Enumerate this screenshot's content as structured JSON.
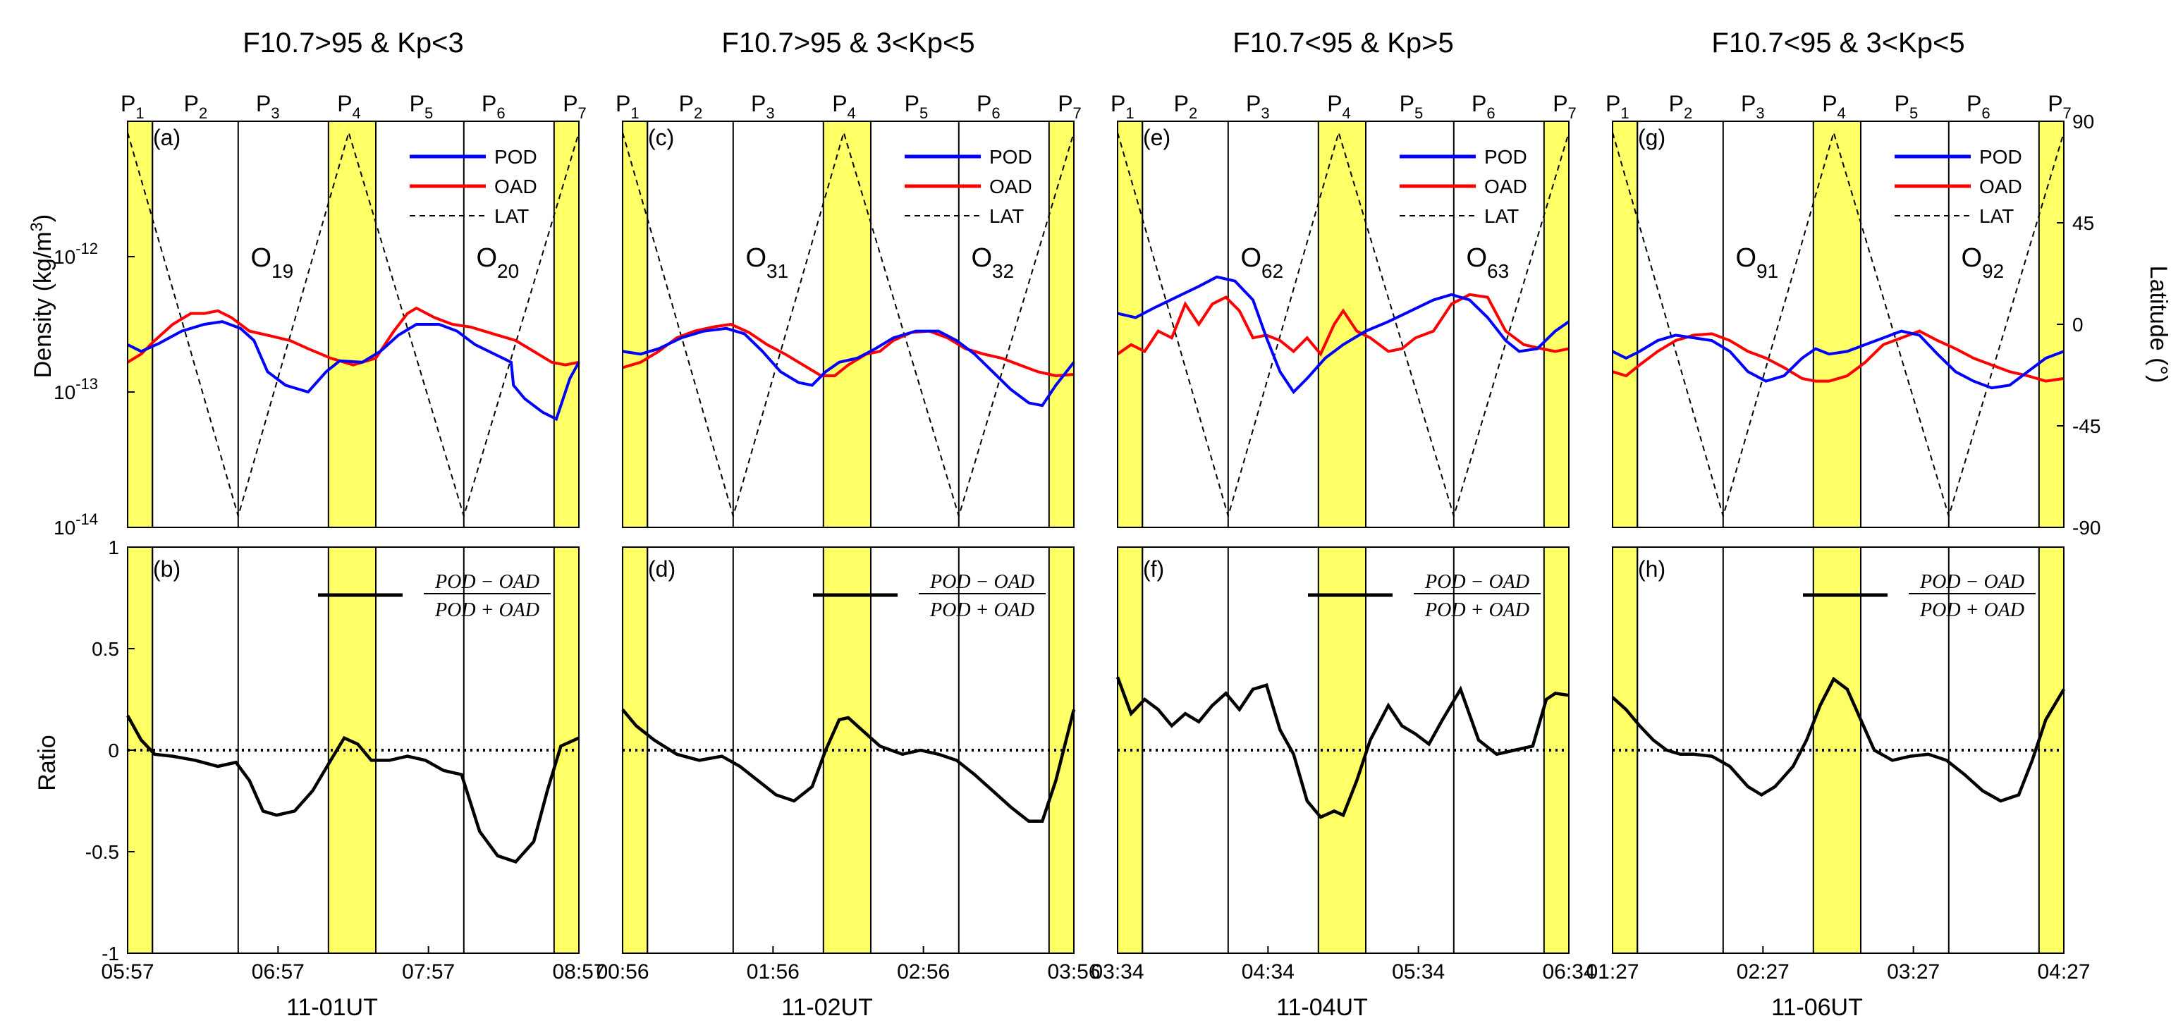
{
  "figure": {
    "ylabel_top": "Density (kg/m",
    "ylabel_top_sup": "3",
    "ylabel_top_end": ")",
    "ylabel_right": "Latitude (°)",
    "ylabel_bottom": "Ratio",
    "ratio_fraction": {
      "numerator": "POD − OAD",
      "denominator": "POD + OAD"
    },
    "colors": {
      "pod": "#0000ff",
      "oad": "#ff0000",
      "lat": "#000000",
      "highlight": "#ffff66",
      "ratio": "#000000"
    }
  },
  "chart_data": [
    {
      "type": "line",
      "panel": "top-left",
      "title": "F10.7>95 & Kp<3",
      "label_top": "(a)",
      "label_bottom": "(b)",
      "xtick_labels": [
        "05:57",
        "06:57",
        "07:57",
        "08:57"
      ],
      "date_label": "11-01UT",
      "orbit_labels": [
        {
          "name": "O",
          "sub": "19",
          "t": 0.32
        },
        {
          "name": "O",
          "sub": "20",
          "t": 0.82
        }
      ],
      "p_markers": [
        {
          "name": "P",
          "sub": "1",
          "t": 0.0
        },
        {
          "name": "P",
          "sub": "2",
          "t": 0.14
        },
        {
          "name": "P",
          "sub": "3",
          "t": 0.3
        },
        {
          "name": "P",
          "sub": "4",
          "t": 0.48
        },
        {
          "name": "P",
          "sub": "5",
          "t": 0.64
        },
        {
          "name": "P",
          "sub": "6",
          "t": 0.8
        },
        {
          "name": "P",
          "sub": "7",
          "t": 0.98
        }
      ],
      "vlines": [
        0.055,
        0.245,
        0.745
      ],
      "bands": [
        [
          0,
          0.055
        ],
        [
          0.445,
          0.55
        ],
        [
          0.945,
          1.0
        ]
      ],
      "legend": [
        "POD",
        "OAD",
        "LAT"
      ],
      "xlim": [
        0,
        1
      ],
      "ylim_density_log10": [
        -14,
        -11
      ],
      "ylim_latitude": [
        -90,
        90
      ],
      "ylim_ratio": [
        -1,
        1
      ],
      "yticks_density": [
        "10",
        "10",
        "10"
      ],
      "yticks_density_exp": [
        "-12",
        "-13",
        "-14"
      ],
      "yticks_ratio": [
        "1",
        "0.5",
        "0",
        "-0.5",
        "-1"
      ],
      "lat_x": [
        0,
        0.245,
        0.49,
        0.745,
        1.0
      ],
      "lat_y": [
        85,
        -85,
        85,
        -85,
        85
      ],
      "pod_x": [
        0,
        0.03,
        0.07,
        0.12,
        0.17,
        0.21,
        0.25,
        0.28,
        0.31,
        0.35,
        0.4,
        0.44,
        0.47,
        0.52,
        0.56,
        0.6,
        0.64,
        0.69,
        0.73,
        0.77,
        0.85,
        0.855,
        0.88,
        0.92,
        0.95,
        0.98,
        1.0
      ],
      "pod_log": [
        -12.65,
        -12.7,
        -12.64,
        -12.55,
        -12.5,
        -12.48,
        -12.53,
        -12.62,
        -12.85,
        -12.95,
        -13.0,
        -12.85,
        -12.77,
        -12.78,
        -12.7,
        -12.58,
        -12.5,
        -12.5,
        -12.55,
        -12.65,
        -12.78,
        -12.95,
        -13.05,
        -13.15,
        -13.2,
        -12.9,
        -12.78
      ],
      "oad_x": [
        0,
        0.03,
        0.06,
        0.1,
        0.14,
        0.17,
        0.2,
        0.23,
        0.27,
        0.31,
        0.36,
        0.4,
        0.45,
        0.5,
        0.55,
        0.59,
        0.62,
        0.64,
        0.68,
        0.72,
        0.76,
        0.82,
        0.86,
        0.9,
        0.94,
        0.97,
        1.0
      ],
      "oad_log": [
        -12.78,
        -12.72,
        -12.62,
        -12.5,
        -12.42,
        -12.42,
        -12.4,
        -12.45,
        -12.55,
        -12.58,
        -12.62,
        -12.68,
        -12.75,
        -12.8,
        -12.75,
        -12.55,
        -12.42,
        -12.38,
        -12.45,
        -12.5,
        -12.52,
        -12.58,
        -12.62,
        -12.7,
        -12.78,
        -12.8,
        -12.78
      ],
      "ratio_x": [
        0,
        0.03,
        0.06,
        0.1,
        0.15,
        0.2,
        0.24,
        0.27,
        0.3,
        0.33,
        0.37,
        0.41,
        0.45,
        0.48,
        0.51,
        0.54,
        0.58,
        0.62,
        0.66,
        0.7,
        0.74,
        0.78,
        0.82,
        0.86,
        0.9,
        0.93,
        0.96,
        1.0
      ],
      "ratio_y": [
        0.17,
        0.05,
        -0.02,
        -0.03,
        -0.05,
        -0.08,
        -0.06,
        -0.15,
        -0.3,
        -0.32,
        -0.3,
        -0.2,
        -0.05,
        0.06,
        0.03,
        -0.05,
        -0.05,
        -0.03,
        -0.05,
        -0.1,
        -0.12,
        -0.4,
        -0.52,
        -0.55,
        -0.45,
        -0.2,
        0.02,
        0.06
      ]
    },
    {
      "type": "line",
      "panel": "top-second",
      "title": "F10.7>95 & 3<Kp<5",
      "label_top": "(c)",
      "label_bottom": "(d)",
      "xtick_labels": [
        "00:56",
        "01:56",
        "02:56",
        "03:56"
      ],
      "date_label": "11-02UT",
      "orbit_labels": [
        {
          "name": "O",
          "sub": "31",
          "t": 0.32
        },
        {
          "name": "O",
          "sub": "32",
          "t": 0.82
        }
      ],
      "p_markers": [
        {
          "name": "P",
          "sub": "1",
          "t": 0.0
        },
        {
          "name": "P",
          "sub": "2",
          "t": 0.14
        },
        {
          "name": "P",
          "sub": "3",
          "t": 0.3
        },
        {
          "name": "P",
          "sub": "4",
          "t": 0.48
        },
        {
          "name": "P",
          "sub": "5",
          "t": 0.64
        },
        {
          "name": "P",
          "sub": "6",
          "t": 0.8
        },
        {
          "name": "P",
          "sub": "7",
          "t": 0.98
        }
      ],
      "vlines": [
        0.055,
        0.245,
        0.745
      ],
      "bands": [
        [
          0,
          0.055
        ],
        [
          0.445,
          0.55
        ],
        [
          0.945,
          1.0
        ]
      ],
      "legend": [
        "POD",
        "OAD",
        "LAT"
      ],
      "xlim": [
        0,
        1
      ],
      "ylim_density_log10": [
        -14,
        -11
      ],
      "ylim_latitude": [
        -90,
        90
      ],
      "ylim_ratio": [
        -1,
        1
      ],
      "lat_x": [
        0,
        0.245,
        0.49,
        0.745,
        1.0
      ],
      "lat_y": [
        85,
        -85,
        85,
        -85,
        85
      ],
      "pod_x": [
        0,
        0.04,
        0.08,
        0.13,
        0.18,
        0.23,
        0.27,
        0.31,
        0.35,
        0.39,
        0.42,
        0.45,
        0.48,
        0.52,
        0.56,
        0.6,
        0.65,
        0.7,
        0.74,
        0.78,
        0.82,
        0.86,
        0.9,
        0.93,
        0.96,
        1.0
      ],
      "pod_log": [
        -12.7,
        -12.72,
        -12.68,
        -12.6,
        -12.55,
        -12.53,
        -12.57,
        -12.7,
        -12.85,
        -12.93,
        -12.95,
        -12.85,
        -12.78,
        -12.75,
        -12.68,
        -12.6,
        -12.55,
        -12.55,
        -12.62,
        -12.72,
        -12.85,
        -12.98,
        -13.08,
        -13.1,
        -12.95,
        -12.78
      ],
      "oad_x": [
        0,
        0.04,
        0.08,
        0.12,
        0.16,
        0.2,
        0.24,
        0.28,
        0.32,
        0.36,
        0.4,
        0.44,
        0.47,
        0.5,
        0.54,
        0.57,
        0.6,
        0.64,
        0.68,
        0.72,
        0.76,
        0.8,
        0.84,
        0.88,
        0.92,
        0.96,
        1.0
      ],
      "oad_log": [
        -12.82,
        -12.78,
        -12.7,
        -12.6,
        -12.55,
        -12.52,
        -12.5,
        -12.56,
        -12.65,
        -12.72,
        -12.8,
        -12.88,
        -12.88,
        -12.8,
        -12.72,
        -12.7,
        -12.62,
        -12.56,
        -12.55,
        -12.6,
        -12.68,
        -12.72,
        -12.75,
        -12.8,
        -12.85,
        -12.88,
        -12.87
      ],
      "ratio_x": [
        0,
        0.03,
        0.07,
        0.12,
        0.17,
        0.22,
        0.26,
        0.3,
        0.34,
        0.38,
        0.42,
        0.45,
        0.48,
        0.5,
        0.53,
        0.57,
        0.62,
        0.66,
        0.7,
        0.74,
        0.78,
        0.82,
        0.86,
        0.9,
        0.93,
        0.96,
        1.0
      ],
      "ratio_y": [
        0.2,
        0.12,
        0.05,
        -0.02,
        -0.05,
        -0.03,
        -0.08,
        -0.15,
        -0.22,
        -0.25,
        -0.18,
        0.0,
        0.15,
        0.16,
        0.1,
        0.02,
        -0.02,
        0.0,
        -0.02,
        -0.05,
        -0.12,
        -0.2,
        -0.28,
        -0.35,
        -0.35,
        -0.15,
        0.2
      ]
    },
    {
      "type": "line",
      "panel": "top-third",
      "title": "F10.7<95 & Kp>5",
      "label_top": "(e)",
      "label_bottom": "(f)",
      "xtick_labels": [
        "03:34",
        "04:34",
        "05:34",
        "06:34"
      ],
      "date_label": "11-04UT",
      "orbit_labels": [
        {
          "name": "O",
          "sub": "62",
          "t": 0.32
        },
        {
          "name": "O",
          "sub": "63",
          "t": 0.82
        }
      ],
      "p_markers": [
        {
          "name": "P",
          "sub": "1",
          "t": 0.0
        },
        {
          "name": "P",
          "sub": "2",
          "t": 0.14
        },
        {
          "name": "P",
          "sub": "3",
          "t": 0.3
        },
        {
          "name": "P",
          "sub": "4",
          "t": 0.48
        },
        {
          "name": "P",
          "sub": "5",
          "t": 0.64
        },
        {
          "name": "P",
          "sub": "6",
          "t": 0.8
        },
        {
          "name": "P",
          "sub": "7",
          "t": 0.98
        }
      ],
      "vlines": [
        0.055,
        0.245,
        0.745
      ],
      "bands": [
        [
          0,
          0.055
        ],
        [
          0.445,
          0.55
        ],
        [
          0.945,
          1.0
        ]
      ],
      "legend": [
        "POD",
        "OAD",
        "LAT"
      ],
      "xlim": [
        0,
        1
      ],
      "ylim_density_log10": [
        -14,
        -11
      ],
      "ylim_latitude": [
        -90,
        90
      ],
      "ylim_ratio": [
        -1,
        1
      ],
      "lat_x": [
        0,
        0.245,
        0.49,
        0.745,
        1.0
      ],
      "lat_y": [
        85,
        -85,
        85,
        -85,
        85
      ],
      "pod_x": [
        0,
        0.04,
        0.08,
        0.13,
        0.18,
        0.22,
        0.26,
        0.3,
        0.33,
        0.36,
        0.39,
        0.42,
        0.46,
        0.5,
        0.55,
        0.6,
        0.65,
        0.7,
        0.74,
        0.78,
        0.82,
        0.86,
        0.89,
        0.93,
        0.97,
        1.0
      ],
      "pod_log": [
        -12.42,
        -12.45,
        -12.38,
        -12.3,
        -12.22,
        -12.15,
        -12.18,
        -12.32,
        -12.6,
        -12.85,
        -13.0,
        -12.9,
        -12.75,
        -12.65,
        -12.55,
        -12.48,
        -12.4,
        -12.32,
        -12.28,
        -12.32,
        -12.45,
        -12.62,
        -12.7,
        -12.68,
        -12.55,
        -12.48
      ],
      "oad_x": [
        0,
        0.03,
        0.06,
        0.09,
        0.12,
        0.15,
        0.18,
        0.21,
        0.24,
        0.27,
        0.3,
        0.33,
        0.36,
        0.39,
        0.42,
        0.45,
        0.48,
        0.5,
        0.53,
        0.56,
        0.6,
        0.63,
        0.66,
        0.7,
        0.74,
        0.78,
        0.82,
        0.86,
        0.9,
        0.94,
        0.97,
        1.0
      ],
      "oad_log": [
        -12.72,
        -12.65,
        -12.7,
        -12.55,
        -12.6,
        -12.35,
        -12.5,
        -12.35,
        -12.3,
        -12.4,
        -12.6,
        -12.58,
        -12.62,
        -12.7,
        -12.6,
        -12.72,
        -12.5,
        -12.4,
        -12.55,
        -12.6,
        -12.7,
        -12.68,
        -12.6,
        -12.55,
        -12.35,
        -12.28,
        -12.3,
        -12.55,
        -12.65,
        -12.68,
        -12.7,
        -12.68
      ],
      "ratio_x": [
        0,
        0.03,
        0.06,
        0.09,
        0.12,
        0.15,
        0.18,
        0.21,
        0.24,
        0.27,
        0.3,
        0.33,
        0.36,
        0.39,
        0.42,
        0.45,
        0.48,
        0.5,
        0.53,
        0.56,
        0.6,
        0.63,
        0.66,
        0.69,
        0.72,
        0.76,
        0.8,
        0.84,
        0.88,
        0.92,
        0.95,
        0.97,
        1.0
      ],
      "ratio_y": [
        0.36,
        0.18,
        0.25,
        0.2,
        0.12,
        0.18,
        0.14,
        0.22,
        0.28,
        0.2,
        0.3,
        0.32,
        0.1,
        -0.02,
        -0.25,
        -0.33,
        -0.3,
        -0.32,
        -0.15,
        0.05,
        0.22,
        0.12,
        0.08,
        0.03,
        0.15,
        0.3,
        0.05,
        -0.02,
        0.0,
        0.02,
        0.25,
        0.28,
        0.27
      ]
    },
    {
      "type": "line",
      "panel": "top-right",
      "title": "F10.7<95 & 3<Kp<5",
      "label_top": "(g)",
      "label_bottom": "(h)",
      "xtick_labels": [
        "01:27",
        "02:27",
        "03:27",
        "04:27"
      ],
      "date_label": "11-06UT",
      "orbit_labels": [
        {
          "name": "O",
          "sub": "91",
          "t": 0.32
        },
        {
          "name": "O",
          "sub": "92",
          "t": 0.82
        }
      ],
      "p_markers": [
        {
          "name": "P",
          "sub": "1",
          "t": 0.0
        },
        {
          "name": "P",
          "sub": "2",
          "t": 0.14
        },
        {
          "name": "P",
          "sub": "3",
          "t": 0.3
        },
        {
          "name": "P",
          "sub": "4",
          "t": 0.48
        },
        {
          "name": "P",
          "sub": "5",
          "t": 0.64
        },
        {
          "name": "P",
          "sub": "6",
          "t": 0.8
        },
        {
          "name": "P",
          "sub": "7",
          "t": 0.98
        }
      ],
      "vlines": [
        0.055,
        0.245,
        0.745
      ],
      "bands": [
        [
          0,
          0.055
        ],
        [
          0.445,
          0.55
        ],
        [
          0.945,
          1.0
        ]
      ],
      "legend": [
        "POD",
        "OAD",
        "LAT"
      ],
      "xlim": [
        0,
        1
      ],
      "ylim_density_log10": [
        -14,
        -11
      ],
      "ylim_latitude": [
        -90,
        90
      ],
      "ylim_ratio": [
        -1,
        1
      ],
      "yticks_latitude": [
        "90",
        "45",
        "0",
        "-45",
        "-90"
      ],
      "lat_x": [
        0,
        0.245,
        0.49,
        0.745,
        1.0
      ],
      "lat_y": [
        85,
        -85,
        85,
        -85,
        85
      ],
      "pod_x": [
        0,
        0.03,
        0.06,
        0.1,
        0.14,
        0.18,
        0.22,
        0.26,
        0.3,
        0.34,
        0.38,
        0.42,
        0.45,
        0.48,
        0.52,
        0.56,
        0.6,
        0.64,
        0.68,
        0.72,
        0.76,
        0.8,
        0.84,
        0.88,
        0.92,
        0.96,
        1.0
      ],
      "pod_log": [
        -12.7,
        -12.75,
        -12.7,
        -12.62,
        -12.58,
        -12.6,
        -12.62,
        -12.7,
        -12.85,
        -12.92,
        -12.88,
        -12.75,
        -12.68,
        -12.72,
        -12.7,
        -12.65,
        -12.6,
        -12.55,
        -12.58,
        -12.72,
        -12.85,
        -12.92,
        -12.97,
        -12.95,
        -12.85,
        -12.75,
        -12.7
      ],
      "oad_x": [
        0,
        0.03,
        0.06,
        0.1,
        0.14,
        0.18,
        0.22,
        0.26,
        0.3,
        0.34,
        0.38,
        0.42,
        0.45,
        0.48,
        0.52,
        0.56,
        0.6,
        0.64,
        0.68,
        0.72,
        0.76,
        0.8,
        0.84,
        0.88,
        0.92,
        0.96,
        1.0
      ],
      "oad_log": [
        -12.85,
        -12.88,
        -12.8,
        -12.7,
        -12.62,
        -12.58,
        -12.57,
        -12.62,
        -12.7,
        -12.75,
        -12.82,
        -12.9,
        -12.92,
        -12.92,
        -12.88,
        -12.78,
        -12.65,
        -12.6,
        -12.55,
        -12.62,
        -12.68,
        -12.75,
        -12.8,
        -12.85,
        -12.88,
        -12.92,
        -12.9
      ],
      "ratio_x": [
        0,
        0.03,
        0.06,
        0.09,
        0.12,
        0.15,
        0.18,
        0.22,
        0.26,
        0.3,
        0.33,
        0.36,
        0.4,
        0.43,
        0.46,
        0.49,
        0.52,
        0.55,
        0.58,
        0.62,
        0.66,
        0.7,
        0.74,
        0.78,
        0.82,
        0.86,
        0.9,
        0.93,
        0.96,
        1.0
      ],
      "ratio_y": [
        0.26,
        0.2,
        0.12,
        0.05,
        0.0,
        -0.02,
        -0.02,
        -0.03,
        -0.08,
        -0.18,
        -0.22,
        -0.18,
        -0.08,
        0.05,
        0.22,
        0.35,
        0.3,
        0.15,
        0.0,
        -0.05,
        -0.03,
        -0.02,
        -0.05,
        -0.12,
        -0.2,
        -0.25,
        -0.22,
        -0.05,
        0.15,
        0.3
      ]
    }
  ]
}
